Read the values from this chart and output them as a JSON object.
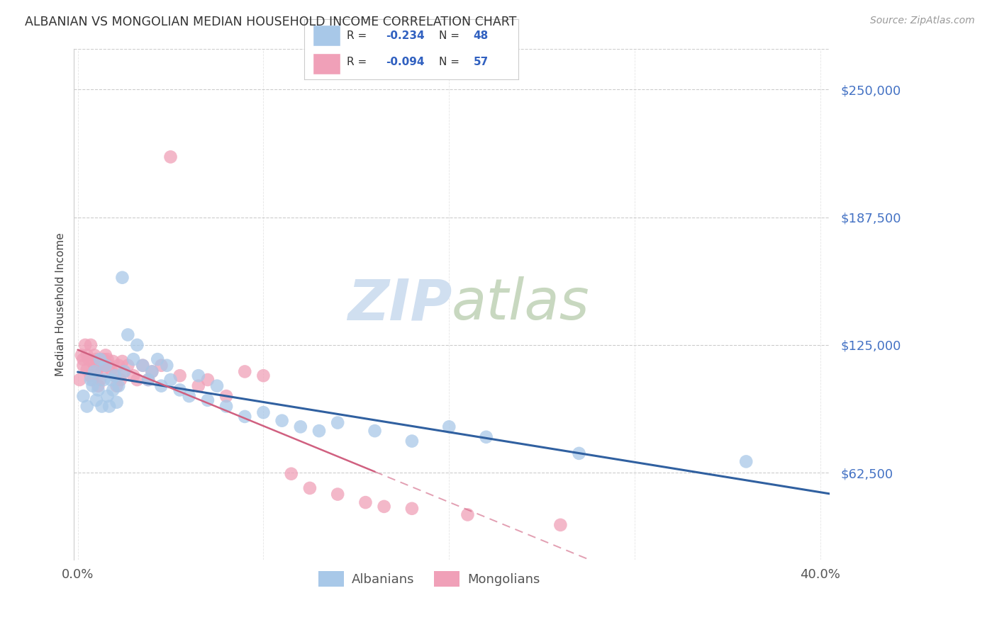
{
  "title": "ALBANIAN VS MONGOLIAN MEDIAN HOUSEHOLD INCOME CORRELATION CHART",
  "source": "Source: ZipAtlas.com",
  "ylabel": "Median Household Income",
  "ytick_labels": [
    "$62,500",
    "$125,000",
    "$187,500",
    "$250,000"
  ],
  "ytick_values": [
    62500,
    125000,
    187500,
    250000
  ],
  "ymin": 20000,
  "ymax": 270000,
  "xmin": -0.002,
  "xmax": 0.405,
  "legend_label_blue": "Albanians",
  "legend_label_pink": "Mongolians",
  "blue_color": "#A8C8E8",
  "pink_color": "#F0A0B8",
  "blue_line_color": "#3060A0",
  "pink_line_color": "#D06080",
  "watermark_color": "#D0DFF0",
  "background_color": "#FFFFFF",
  "grid_color": "#CCCCCC",
  "albanians_x": [
    0.003,
    0.005,
    0.007,
    0.008,
    0.009,
    0.01,
    0.011,
    0.012,
    0.013,
    0.014,
    0.015,
    0.016,
    0.017,
    0.018,
    0.019,
    0.02,
    0.021,
    0.022,
    0.024,
    0.025,
    0.027,
    0.03,
    0.032,
    0.035,
    0.038,
    0.04,
    0.043,
    0.045,
    0.048,
    0.05,
    0.055,
    0.06,
    0.065,
    0.07,
    0.075,
    0.08,
    0.09,
    0.1,
    0.11,
    0.12,
    0.13,
    0.14,
    0.16,
    0.18,
    0.2,
    0.22,
    0.27,
    0.36
  ],
  "albanians_y": [
    100000,
    95000,
    108000,
    105000,
    112000,
    98000,
    103000,
    118000,
    95000,
    108000,
    115000,
    100000,
    95000,
    108000,
    103000,
    110000,
    97000,
    105000,
    158000,
    112000,
    130000,
    118000,
    125000,
    115000,
    108000,
    112000,
    118000,
    105000,
    115000,
    108000,
    103000,
    100000,
    110000,
    98000,
    105000,
    95000,
    90000,
    92000,
    88000,
    85000,
    83000,
    87000,
    83000,
    78000,
    85000,
    80000,
    72000,
    68000
  ],
  "mongolians_x": [
    0.001,
    0.002,
    0.003,
    0.003,
    0.004,
    0.005,
    0.005,
    0.006,
    0.007,
    0.007,
    0.008,
    0.008,
    0.009,
    0.009,
    0.01,
    0.01,
    0.011,
    0.012,
    0.012,
    0.013,
    0.013,
    0.014,
    0.014,
    0.015,
    0.015,
    0.016,
    0.017,
    0.018,
    0.019,
    0.02,
    0.021,
    0.022,
    0.023,
    0.024,
    0.025,
    0.027,
    0.03,
    0.032,
    0.035,
    0.038,
    0.04,
    0.045,
    0.05,
    0.055,
    0.065,
    0.07,
    0.08,
    0.09,
    0.1,
    0.115,
    0.125,
    0.14,
    0.155,
    0.165,
    0.18,
    0.21,
    0.26
  ],
  "mongolians_y": [
    108000,
    120000,
    118000,
    115000,
    125000,
    113000,
    120000,
    118000,
    110000,
    125000,
    108000,
    117000,
    115000,
    120000,
    112000,
    118000,
    105000,
    115000,
    108000,
    118000,
    112000,
    115000,
    118000,
    115000,
    120000,
    118000,
    115000,
    113000,
    117000,
    110000,
    105000,
    115000,
    108000,
    117000,
    112000,
    115000,
    110000,
    108000,
    115000,
    108000,
    112000,
    115000,
    217000,
    110000,
    105000,
    108000,
    100000,
    112000,
    110000,
    62000,
    55000,
    52000,
    48000,
    46000,
    45000,
    42000,
    37000
  ]
}
